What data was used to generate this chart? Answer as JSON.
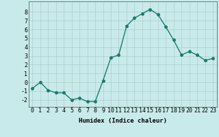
{
  "x": [
    0,
    1,
    2,
    3,
    4,
    5,
    6,
    7,
    8,
    9,
    10,
    11,
    12,
    13,
    14,
    15,
    16,
    17,
    18,
    19,
    20,
    21,
    22,
    23
  ],
  "y": [
    -0.7,
    0.0,
    -0.9,
    -1.2,
    -1.2,
    -2.0,
    -1.8,
    -2.2,
    -2.2,
    0.2,
    2.8,
    3.1,
    6.4,
    7.3,
    7.8,
    8.3,
    7.7,
    6.3,
    4.8,
    3.1,
    3.5,
    3.1,
    2.5,
    2.7
  ],
  "line_color": "#1a7a6e",
  "marker_color": "#1a7a6e",
  "bg_color": "#c8eaea",
  "grid_color": "#b0cccc",
  "xlabel": "Humidex (Indice chaleur)",
  "xlim": [
    -0.5,
    23.5
  ],
  "ylim": [
    -2.8,
    9.2
  ],
  "yticks": [
    -2,
    -1,
    0,
    1,
    2,
    3,
    4,
    5,
    6,
    7,
    8
  ],
  "xticks": [
    0,
    1,
    2,
    3,
    4,
    5,
    6,
    7,
    8,
    9,
    10,
    11,
    12,
    13,
    14,
    15,
    16,
    17,
    18,
    19,
    20,
    21,
    22,
    23
  ],
  "axis_fontsize": 6.5,
  "tick_fontsize": 6.0,
  "line_width": 1.0,
  "marker_size": 2.5
}
